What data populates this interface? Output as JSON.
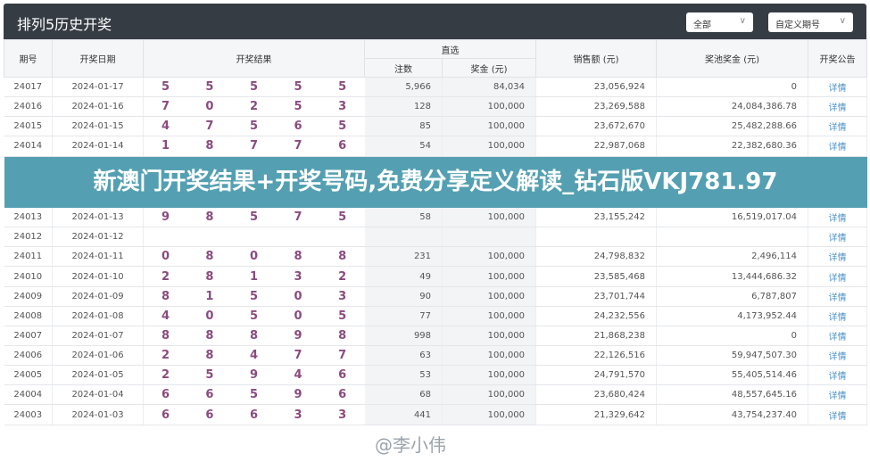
{
  "header": {
    "title": "排列5历史开奖",
    "filter_select": "全部",
    "period_select": "自定义期号"
  },
  "columns": {
    "period": "期号",
    "date": "开奖日期",
    "result": "开奖结果",
    "direct": "直选",
    "count": "注数",
    "prize": "奖金 (元)",
    "sales": "销售额 (元)",
    "pool": "奖池奖金 (元)",
    "notice": "开奖公告"
  },
  "rows": [
    {
      "period": "24017",
      "date": "2024-01-17",
      "digits": [
        "5",
        "5",
        "5",
        "5",
        "5"
      ],
      "count": "5,966",
      "prize": "84,034",
      "sales": "23,056,924",
      "pool": "0",
      "link": "详情"
    },
    {
      "period": "24016",
      "date": "2024-01-16",
      "digits": [
        "7",
        "0",
        "2",
        "5",
        "3"
      ],
      "count": "128",
      "prize": "100,000",
      "sales": "23,269,588",
      "pool": "24,084,386.78",
      "link": "详情"
    },
    {
      "period": "24015",
      "date": "2024-01-15",
      "digits": [
        "4",
        "7",
        "5",
        "6",
        "5"
      ],
      "count": "85",
      "prize": "100,000",
      "sales": "23,672,670",
      "pool": "25,482,288.66",
      "link": "详情"
    },
    {
      "period": "24014",
      "date": "2024-01-14",
      "digits": [
        "1",
        "8",
        "7",
        "7",
        "6"
      ],
      "count": "54",
      "prize": "100,000",
      "sales": "22,987,068",
      "pool": "22,382,680.36",
      "link": "详情"
    },
    {
      "period": "24013",
      "date": "2024-01-13",
      "digits": [
        "9",
        "8",
        "5",
        "7",
        "5"
      ],
      "count": "58",
      "prize": "100,000",
      "sales": "23,155,242",
      "pool": "16,519,017.04",
      "link": "详情"
    },
    {
      "period": "24012",
      "date": "2024-01-12",
      "digits": [
        "",
        "",
        "",
        "",
        ""
      ],
      "count": "",
      "prize": "",
      "sales": "",
      "pool": "",
      "link": "详情"
    },
    {
      "period": "24011",
      "date": "2024-01-11",
      "digits": [
        "0",
        "8",
        "0",
        "8",
        "8"
      ],
      "count": "231",
      "prize": "100,000",
      "sales": "24,798,832",
      "pool": "2,496,114",
      "link": "详情"
    },
    {
      "period": "24010",
      "date": "2024-01-10",
      "digits": [
        "2",
        "8",
        "1",
        "3",
        "2"
      ],
      "count": "49",
      "prize": "100,000",
      "sales": "23,585,468",
      "pool": "13,444,686.32",
      "link": "详情"
    },
    {
      "period": "24009",
      "date": "2024-01-09",
      "digits": [
        "8",
        "1",
        "5",
        "0",
        "3"
      ],
      "count": "90",
      "prize": "100,000",
      "sales": "23,701,744",
      "pool": "6,787,807",
      "link": "详情"
    },
    {
      "period": "24008",
      "date": "2024-01-08",
      "digits": [
        "4",
        "0",
        "5",
        "0",
        "5"
      ],
      "count": "77",
      "prize": "100,000",
      "sales": "24,232,556",
      "pool": "4,173,952.44",
      "link": "详情"
    },
    {
      "period": "24007",
      "date": "2024-01-07",
      "digits": [
        "8",
        "8",
        "8",
        "9",
        "8"
      ],
      "count": "998",
      "prize": "100,000",
      "sales": "21,868,238",
      "pool": "0",
      "link": "详情"
    },
    {
      "period": "24006",
      "date": "2024-01-06",
      "digits": [
        "2",
        "8",
        "4",
        "7",
        "7"
      ],
      "count": "63",
      "prize": "100,000",
      "sales": "22,126,516",
      "pool": "59,947,507.30",
      "link": "详情"
    },
    {
      "period": "24005",
      "date": "2024-01-05",
      "digits": [
        "2",
        "5",
        "9",
        "4",
        "6"
      ],
      "count": "53",
      "prize": "100,000",
      "sales": "24,791,570",
      "pool": "55,405,514.46",
      "link": "详情"
    },
    {
      "period": "24004",
      "date": "2024-01-04",
      "digits": [
        "6",
        "6",
        "5",
        "9",
        "6"
      ],
      "count": "68",
      "prize": "100,000",
      "sales": "23,680,424",
      "pool": "48,557,645.16",
      "link": "详情"
    },
    {
      "period": "24003",
      "date": "2024-01-03",
      "digits": [
        "6",
        "6",
        "6",
        "3",
        "3"
      ],
      "count": "441",
      "prize": "100,000",
      "sales": "21,329,642",
      "pool": "43,754,237.40",
      "link": "详情"
    }
  ],
  "banner": "新澳门开奖结果+开奖号码,免费分享定义解读_钻石版VKJ781.97",
  "watermark": "@李小伟",
  "colors": {
    "header_bg": "#363c44",
    "digit": "#8a4a7e",
    "link": "#4a8fc6",
    "banner": "#54a0b2"
  }
}
